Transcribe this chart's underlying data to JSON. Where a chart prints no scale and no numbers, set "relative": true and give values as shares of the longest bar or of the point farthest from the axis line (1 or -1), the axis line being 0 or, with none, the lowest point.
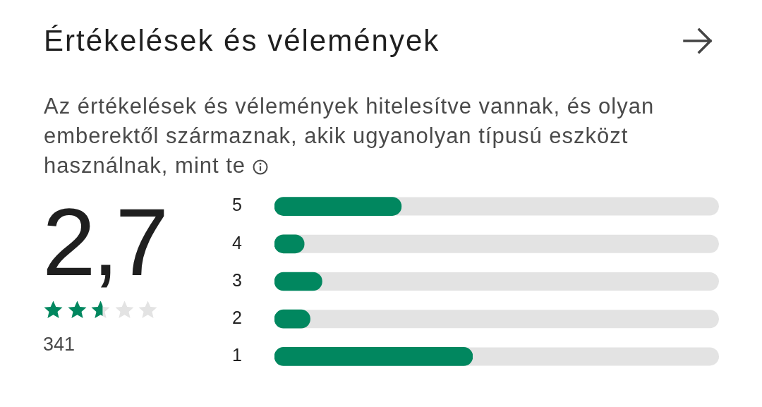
{
  "chart_data": {
    "type": "bar",
    "orientation": "horizontal",
    "relative": true,
    "title": "Értékelések és vélemények",
    "subtitle": "Az értékelések és vélemények hitelesítve vannak, és olyan emberektől származnak, akik ugyanolyan típusú eszközt használnak, mint te",
    "categories": [
      "5",
      "4",
      "3",
      "2",
      "1"
    ],
    "values": [
      0.64,
      0.15,
      0.24,
      0.18,
      1
    ],
    "color": "#01875f",
    "annotations": [
      "2,7",
      "341"
    ]
  }
}
